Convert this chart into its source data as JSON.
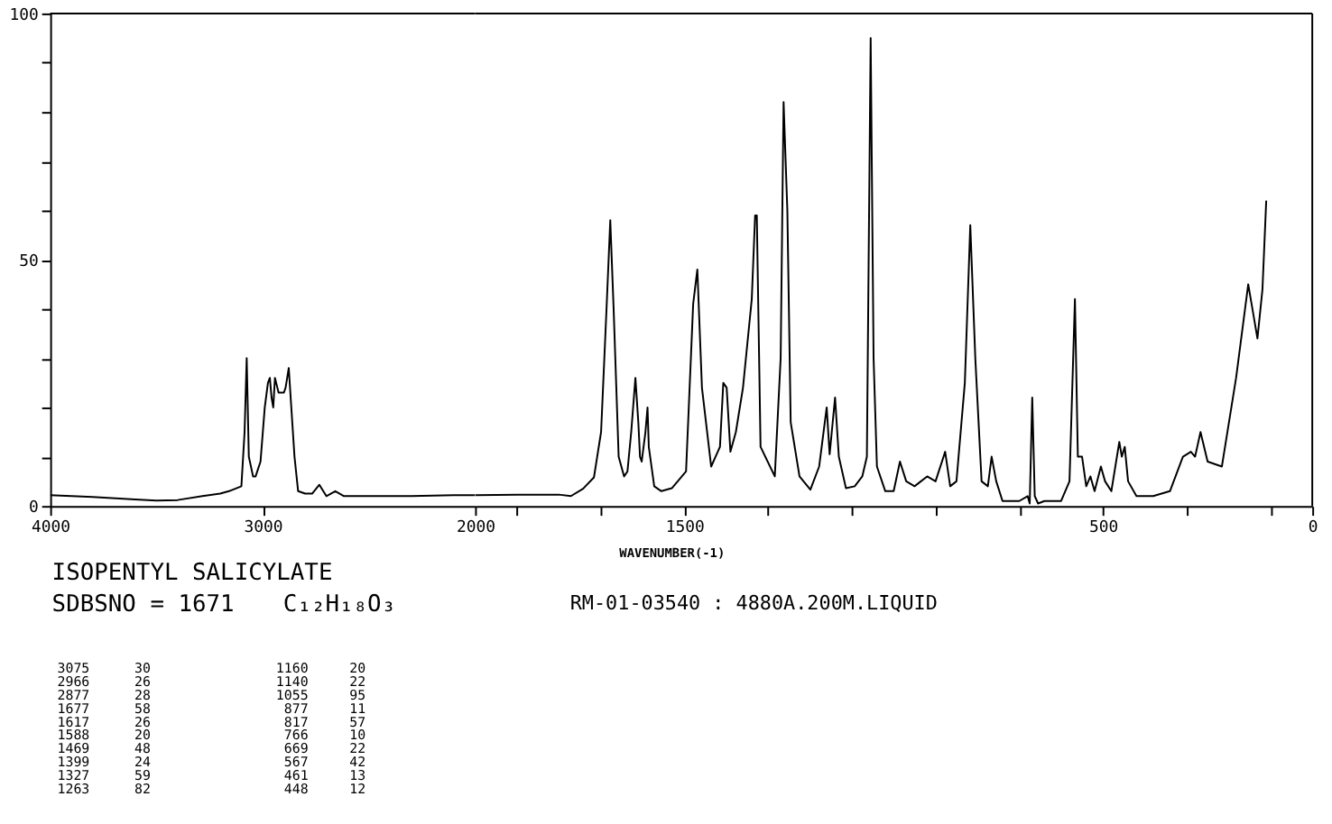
{
  "chart_data": [
    {
      "type": "line",
      "x": [
        4000,
        3800,
        3600,
        3500,
        3400,
        3283,
        3200,
        3158,
        3100,
        3085,
        3075,
        3065,
        3045,
        3033,
        3010,
        2990,
        2975,
        2966,
        2958,
        2950,
        2942,
        2925,
        2900,
        2892,
        2877,
        2865,
        2850,
        2833,
        2800,
        2767,
        2733,
        2700,
        2658,
        2617,
        2500,
        2300,
        2100,
        2000
      ],
      "series": [
        {
          "color": "#000000",
          "values": [
            2.2,
            1.8,
            1.3,
            1.1,
            1.2,
            2,
            2.5,
            3,
            4,
            15,
            30,
            10,
            6,
            6,
            9,
            20,
            25,
            26,
            22,
            20,
            26,
            23,
            23,
            24,
            28,
            20,
            10,
            3,
            2.5,
            2.5,
            4.3,
            2,
            3,
            2,
            2,
            2,
            2.2,
            2.2
          ]
        }
      ],
      "xlim": [
        4000,
        2000
      ],
      "xticks": [
        4000,
        3000,
        2000
      ],
      "ylim": [
        0,
        100
      ],
      "yticks": [
        0,
        {
          "value": 10,
          "label": null
        },
        {
          "value": 20,
          "label": null
        },
        {
          "value": 30,
          "label": null
        },
        {
          "value": 40,
          "label": null
        },
        50,
        {
          "value": 60,
          "label": null
        },
        {
          "value": 70,
          "label": null
        },
        {
          "value": 80,
          "label": null
        },
        {
          "value": 90,
          "label": null
        },
        100
      ],
      "grid": false,
      "marker": "none",
      "line_style": "solid",
      "annotations": [
        "ISOPENTYL SALICYLATE",
        "SDBSNO = 1671",
        "C₁₂H₁₈O₃",
        "RM-01-03540 : 4880A.200M.LIQUID",
        "3075",
        "2966",
        "2877",
        "1677",
        "1617",
        "1588",
        "1469",
        "1399",
        "1327",
        "1263",
        "30",
        "26",
        "28",
        "58",
        "26",
        "20",
        "48",
        "24",
        "59",
        "82",
        "1160",
        "1140",
        "1055",
        "877",
        "817",
        "766",
        "669",
        "567",
        "461",
        "448",
        "20",
        "22",
        "95",
        "11",
        "57",
        "10",
        "22",
        "42",
        "13",
        "12"
      ]
    },
    {
      "type": "line",
      "xlabel": "WAVENUMBER(-1)",
      "x": [
        2000,
        1900,
        1800,
        1771,
        1742,
        1716,
        1699,
        1686,
        1677,
        1669,
        1657,
        1644,
        1636,
        1627,
        1617,
        1610,
        1606,
        1602,
        1593,
        1588,
        1585,
        1572,
        1555,
        1530,
        1496,
        1479,
        1469,
        1458,
        1436,
        1415,
        1407,
        1399,
        1390,
        1377,
        1360,
        1339,
        1331,
        1327,
        1318,
        1284,
        1270,
        1263,
        1254,
        1246,
        1225,
        1199,
        1178,
        1160,
        1153,
        1140,
        1131,
        1114,
        1093,
        1075,
        1064,
        1055,
        1048,
        1040,
        1020,
        1000,
        985,
        970,
        950,
        920,
        900,
        877,
        865,
        850,
        830,
        817,
        805,
        790,
        775,
        766,
        755,
        740,
        700,
        680,
        675,
        669,
        663,
        655,
        640,
        600,
        580,
        567,
        560,
        550,
        540,
        530,
        520,
        505,
        495,
        480,
        461,
        455,
        448,
        440,
        420,
        380,
        340,
        309,
        290,
        280,
        267,
        250,
        216,
        182,
        153,
        131,
        119,
        110
      ],
      "series": [
        {
          "color": "#000000",
          "values": [
            2.2,
            2.3,
            2.3,
            2,
            3.5,
            5.8,
            15,
            40,
            58,
            40,
            10,
            6,
            7,
            15,
            26,
            17,
            10,
            9,
            15,
            20,
            12,
            4,
            3,
            3.6,
            7,
            41,
            48,
            24,
            8,
            12,
            25,
            24,
            11,
            15,
            24,
            42,
            59,
            59,
            12,
            6,
            30,
            82,
            60,
            17,
            6,
            3.3,
            8,
            20,
            10.5,
            22,
            10,
            3.6,
            4,
            6,
            10,
            95,
            30,
            8,
            3,
            3,
            9,
            5,
            4,
            6,
            5,
            11,
            4,
            5,
            25,
            57,
            30,
            5,
            4,
            10,
            5,
            1,
            1,
            2,
            0.5,
            22,
            2,
            0.5,
            1,
            1,
            5,
            42,
            10,
            10,
            4,
            6,
            3,
            8,
            5,
            3,
            13,
            10,
            12,
            5,
            2,
            2,
            3,
            10,
            11,
            10,
            15,
            9,
            8,
            26,
            45,
            34,
            44,
            62
          ]
        }
      ],
      "xlim": [
        2000,
        0
      ],
      "xticks": [
        {
          "value": 1900,
          "label": null
        },
        {
          "value": 1700,
          "label": null
        },
        1500,
        {
          "value": 1300,
          "label": null
        },
        {
          "value": 1100,
          "label": null
        },
        {
          "value": 900,
          "label": null
        },
        {
          "value": 700,
          "label": null
        },
        500,
        {
          "value": 300,
          "label": null
        },
        {
          "value": 100,
          "label": null
        },
        0
      ],
      "ylim": [
        0,
        100
      ],
      "tick_labels": "x",
      "grid": false,
      "marker": "none",
      "line_style": "solid"
    }
  ]
}
